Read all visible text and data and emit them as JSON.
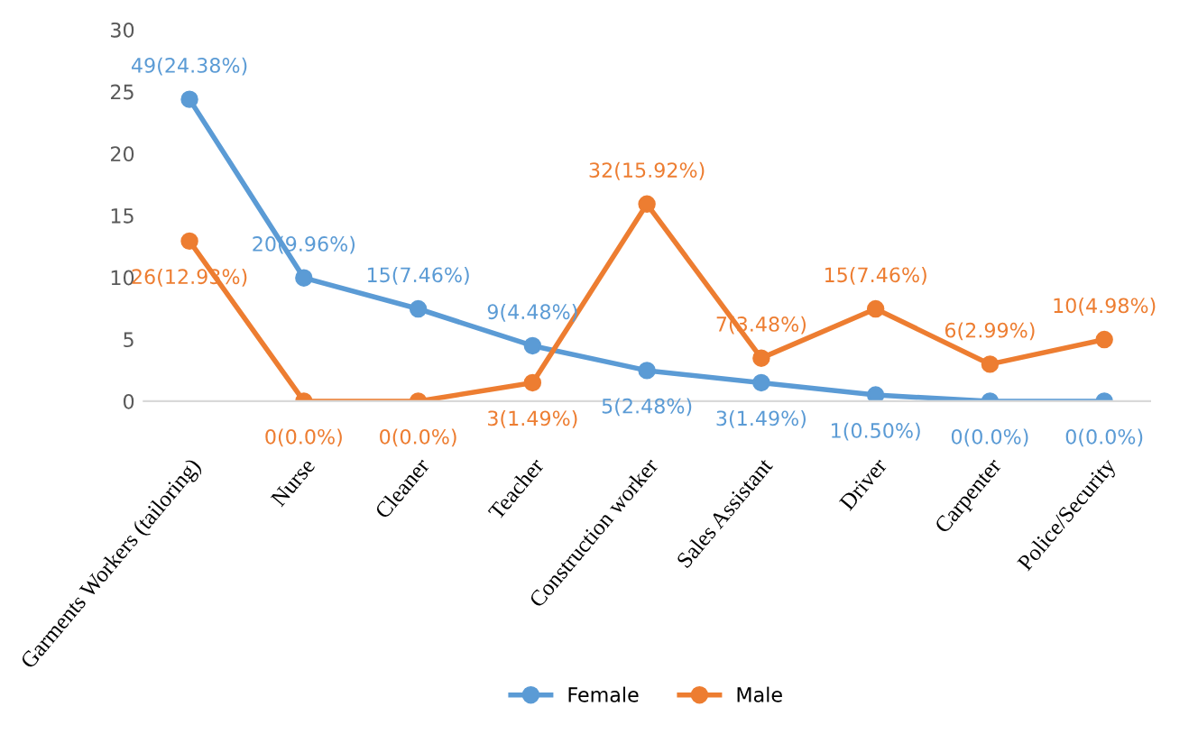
{
  "chart_data": {
    "type": "line",
    "categories": [
      "Garments Workers (tailoring)",
      "Nurse",
      "Cleaner",
      "Teacher",
      "Construction worker",
      "Sales Assistant",
      "Driver",
      "Carpenter",
      "Police/Security"
    ],
    "series": [
      {
        "name": "Female",
        "color": "#5b9bd5",
        "values": [
          24.38,
          9.96,
          7.46,
          4.48,
          2.48,
          1.49,
          0.5,
          0.0,
          0.0
        ],
        "value_labels": [
          "49(24.38%)",
          "20(9.96%)",
          "15(7.46%)",
          "9(4.48%)",
          "5(2.48%)",
          "3(1.49%)",
          "1(0.50%)",
          "0(0.0%)",
          "0(0.0%)"
        ]
      },
      {
        "name": "Male",
        "color": "#ed7d31",
        "values": [
          12.93,
          0.0,
          0.0,
          1.49,
          15.92,
          3.48,
          7.46,
          2.99,
          4.98
        ],
        "value_labels": [
          "26(12.93%)",
          "0(0.0%)",
          "0(0.0%)",
          "3(1.49%)",
          "32(15.92%)",
          "7(3.48%)",
          "15(7.46%)",
          "6(2.99%)",
          "10(4.98%)"
        ]
      }
    ],
    "ylim": [
      0,
      30
    ],
    "yticks": [
      0,
      5,
      10,
      15,
      20,
      25,
      30
    ],
    "grid": false,
    "legend": "bottom",
    "marker": "circle",
    "line_style": "solid"
  }
}
